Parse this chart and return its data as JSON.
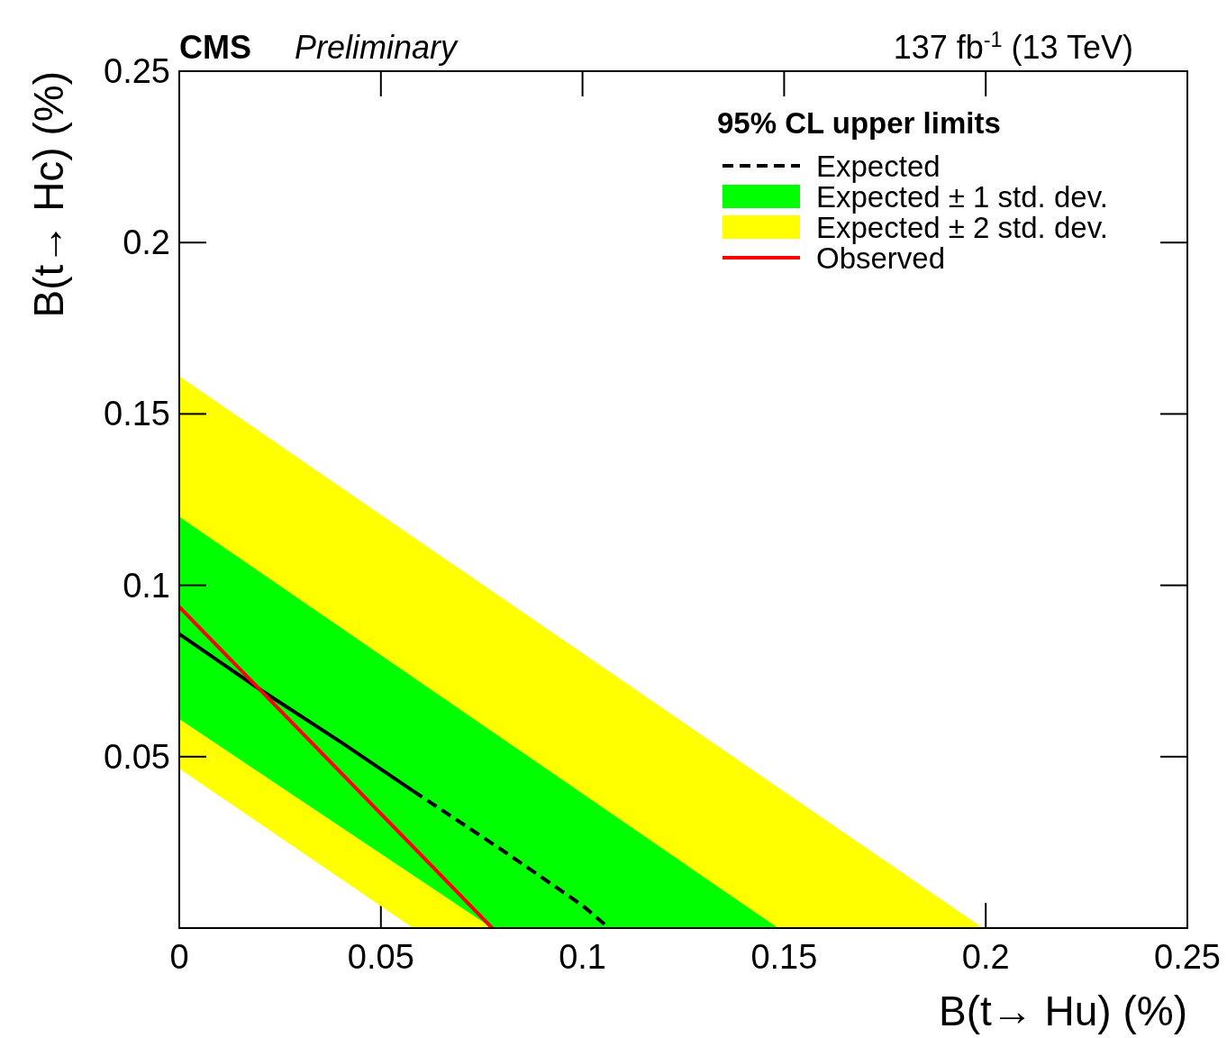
{
  "chart_data": {
    "type": "line",
    "title": "CMS",
    "subtitle": "Preliminary",
    "annotations": [
      "137 fb$^{-1}$ (13 TeV)"
    ],
    "xlabel": "B(t→ Hu) (%)",
    "ylabel": "B(t→ Hc) (%)",
    "legend_title": "95% CL upper limits",
    "legend": "top right",
    "grid": false,
    "xlim": [
      0,
      0.25
    ],
    "ylim": [
      0,
      0.25
    ],
    "xticks": [
      0,
      0.05,
      0.1,
      0.15,
      0.2,
      0.25
    ],
    "yticks": [
      0.05,
      0.1,
      0.15,
      0.2,
      0.25
    ],
    "series": [
      {
        "color": "#000000",
        "line_style": "solid",
        "x": [
          0,
          0.0195,
          0.04,
          0.058
        ],
        "values": [
          0.0858,
          0.07,
          0.0543,
          0.04
        ]
      },
      {
        "name": "Expected",
        "color": "#000000",
        "line_style": "dashed",
        "x": [
          0.058,
          0.08,
          0.1,
          0.1066
        ],
        "values": [
          0.04,
          0.0228,
          0.0066,
          0
        ]
      },
      {
        "type": "area",
        "name": "Expected ± 1 std. dev.",
        "color": "#00ff00",
        "x": [
          0,
          0.0776,
          0.1485
        ],
        "values": [
          null,
          null,
          null
        ],
        "lower": [
          0.061,
          0,
          0
        ],
        "upper": [
          0.12,
          0.0573,
          0
        ]
      },
      {
        "type": "area",
        "name": "Expected ± 2 std. dev.",
        "color": "#ffff00",
        "x": [
          0,
          0.058,
          0.1993
        ],
        "values": [
          null,
          null,
          null
        ],
        "lower": [
          0.0465,
          0,
          0
        ],
        "upper": [
          0.161,
          0.1141,
          0
        ]
      },
      {
        "name": "Observed",
        "color": "#ff0000",
        "line_style": "solid",
        "x": [
          0,
          0.0776
        ],
        "values": [
          0.0937,
          0
        ]
      }
    ]
  }
}
